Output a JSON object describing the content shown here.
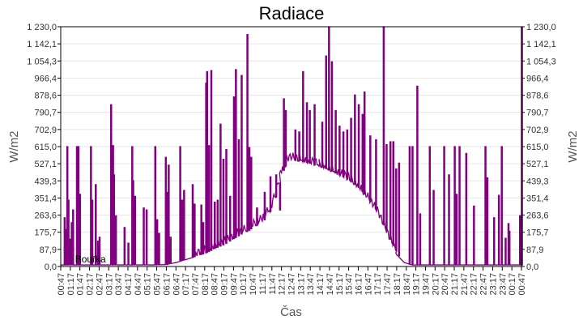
{
  "chart_data": {
    "type": "line",
    "title": "Radiace",
    "xlabel": "Čas",
    "ylabel": "W/m2",
    "ylabel_right": "W/m2",
    "ylim": [
      0,
      1230
    ],
    "y_ticks": [
      "0,0",
      "87,9",
      "175,7",
      "263,6",
      "351,4",
      "439,3",
      "527,1",
      "615,0",
      "702,9",
      "790,7",
      "878,6",
      "966,4",
      "1 054,3",
      "1 142,1",
      "1 230,0"
    ],
    "x_ticks": [
      "00:47",
      "01:17",
      "01:47",
      "02:17",
      "02:47",
      "03:17",
      "03:47",
      "04:17",
      "04:47",
      "05:17",
      "05:47",
      "06:17",
      "06:47",
      "07:17",
      "07:47",
      "08:17",
      "08:47",
      "09:17",
      "09:47",
      "10:17",
      "10:47",
      "11:17",
      "11:47",
      "12:17",
      "12:47",
      "13:17",
      "13:47",
      "14:17",
      "14:47",
      "15:17",
      "15:47",
      "16:17",
      "16:47",
      "17:17",
      "17:47",
      "18:17",
      "18:47",
      "19:17",
      "19:47",
      "20:17",
      "20:47",
      "21:17",
      "21:47",
      "22:17",
      "22:47",
      "23:17",
      "23:47",
      "00:17",
      "00:47"
    ],
    "grid": true,
    "legend": "none",
    "annotations": [
      {
        "text": "Bouřka",
        "x_label": "01:47",
        "y": 40
      }
    ],
    "series": [
      {
        "name": "Radiace",
        "color": "#800080",
        "baseline": [
          [
            0,
            8
          ],
          [
            5.0,
            8
          ],
          [
            5.5,
            10
          ],
          [
            6.0,
            20
          ],
          [
            6.5,
            35
          ],
          [
            7.0,
            50
          ],
          [
            7.5,
            65
          ],
          [
            8.0,
            90
          ],
          [
            8.5,
            110
          ],
          [
            9.0,
            140
          ],
          [
            9.5,
            170
          ],
          [
            10.0,
            200
          ],
          [
            10.5,
            230
          ],
          [
            11.0,
            300
          ],
          [
            11.5,
            480
          ],
          [
            11.75,
            535
          ],
          [
            12.0,
            545
          ],
          [
            12.5,
            538
          ],
          [
            13.0,
            525
          ],
          [
            13.5,
            510
          ],
          [
            14.0,
            490
          ],
          [
            14.5,
            465
          ],
          [
            15.0,
            440
          ],
          [
            15.5,
            400
          ],
          [
            16.0,
            340
          ],
          [
            16.5,
            270
          ],
          [
            17.0,
            160
          ],
          [
            17.5,
            60
          ],
          [
            17.9,
            20
          ],
          [
            18.3,
            8
          ],
          [
            24.0,
            8
          ]
        ],
        "spikes": [
          [
            0.18,
            250
          ],
          [
            0.25,
            190
          ],
          [
            0.32,
            615
          ],
          [
            0.38,
            340
          ],
          [
            0.45,
            140
          ],
          [
            0.55,
            225
          ],
          [
            0.62,
            290
          ],
          [
            0.82,
            615
          ],
          [
            0.9,
            615
          ],
          [
            0.98,
            370
          ],
          [
            1.55,
            615
          ],
          [
            1.62,
            340
          ],
          [
            1.8,
            420
          ],
          [
            1.92,
            130
          ],
          [
            2.0,
            150
          ],
          [
            2.6,
            830
          ],
          [
            2.7,
            620
          ],
          [
            2.75,
            470
          ],
          [
            2.85,
            260
          ],
          [
            3.3,
            200
          ],
          [
            3.5,
            120
          ],
          [
            3.7,
            615
          ],
          [
            3.75,
            440
          ],
          [
            3.85,
            360
          ],
          [
            4.3,
            300
          ],
          [
            4.45,
            290
          ],
          [
            4.9,
            615
          ],
          [
            5.0,
            240
          ],
          [
            5.1,
            170
          ],
          [
            5.45,
            560
          ],
          [
            5.52,
            380
          ],
          [
            5.6,
            520
          ],
          [
            5.7,
            150
          ],
          [
            6.2,
            615
          ],
          [
            6.3,
            340
          ],
          [
            6.4,
            390
          ],
          [
            6.85,
            420
          ],
          [
            6.95,
            320
          ],
          [
            7.3,
            315
          ],
          [
            7.4,
            225
          ],
          [
            7.55,
            940
          ],
          [
            7.6,
            1000
          ],
          [
            7.7,
            620
          ],
          [
            7.82,
            1005
          ],
          [
            8.0,
            330
          ],
          [
            8.15,
            340
          ],
          [
            8.3,
            730
          ],
          [
            8.45,
            550
          ],
          [
            8.6,
            600
          ],
          [
            8.8,
            360
          ],
          [
            9.0,
            870
          ],
          [
            9.1,
            1010
          ],
          [
            9.25,
            650
          ],
          [
            9.4,
            980
          ],
          [
            9.7,
            1190
          ],
          [
            9.8,
            610
          ],
          [
            9.9,
            560
          ],
          [
            10.2,
            300
          ],
          [
            10.6,
            380
          ],
          [
            10.9,
            460
          ],
          [
            11.2,
            470
          ],
          [
            11.4,
            290
          ],
          [
            11.6,
            860
          ],
          [
            11.7,
            800
          ],
          [
            12.2,
            700
          ],
          [
            12.4,
            690
          ],
          [
            12.6,
            1000
          ],
          [
            12.8,
            840
          ],
          [
            12.95,
            800
          ],
          [
            13.2,
            830
          ],
          [
            13.45,
            520
          ],
          [
            13.6,
            740
          ],
          [
            13.8,
            1080
          ],
          [
            13.95,
            1230
          ],
          [
            14.1,
            1050
          ],
          [
            14.3,
            800
          ],
          [
            14.5,
            720
          ],
          [
            14.7,
            690
          ],
          [
            14.9,
            700
          ],
          [
            15.1,
            760
          ],
          [
            15.3,
            880
          ],
          [
            15.5,
            830
          ],
          [
            15.7,
            780
          ],
          [
            15.8,
            895
          ],
          [
            16.1,
            670
          ],
          [
            16.4,
            650
          ],
          [
            16.8,
            1230
          ],
          [
            16.95,
            625
          ],
          [
            17.15,
            640
          ],
          [
            17.3,
            640
          ],
          [
            17.45,
            500
          ],
          [
            17.6,
            530
          ],
          [
            18.15,
            615
          ],
          [
            18.3,
            615
          ],
          [
            18.55,
            925
          ],
          [
            18.7,
            270
          ],
          [
            19.2,
            615
          ],
          [
            19.4,
            390
          ],
          [
            19.95,
            615
          ],
          [
            20.2,
            470
          ],
          [
            20.5,
            615
          ],
          [
            20.6,
            370
          ],
          [
            20.75,
            615
          ],
          [
            21.1,
            580
          ],
          [
            21.5,
            310
          ],
          [
            22.1,
            615
          ],
          [
            22.2,
            455
          ],
          [
            22.55,
            250
          ],
          [
            22.8,
            365
          ],
          [
            22.95,
            615
          ],
          [
            23.15,
            145
          ],
          [
            23.3,
            220
          ],
          [
            23.35,
            180
          ],
          [
            23.9,
            260
          ],
          [
            24.05,
            730
          ],
          [
            24.1,
            1230
          ],
          [
            24.25,
            470
          ],
          [
            24.4,
            165
          ]
        ]
      }
    ]
  }
}
